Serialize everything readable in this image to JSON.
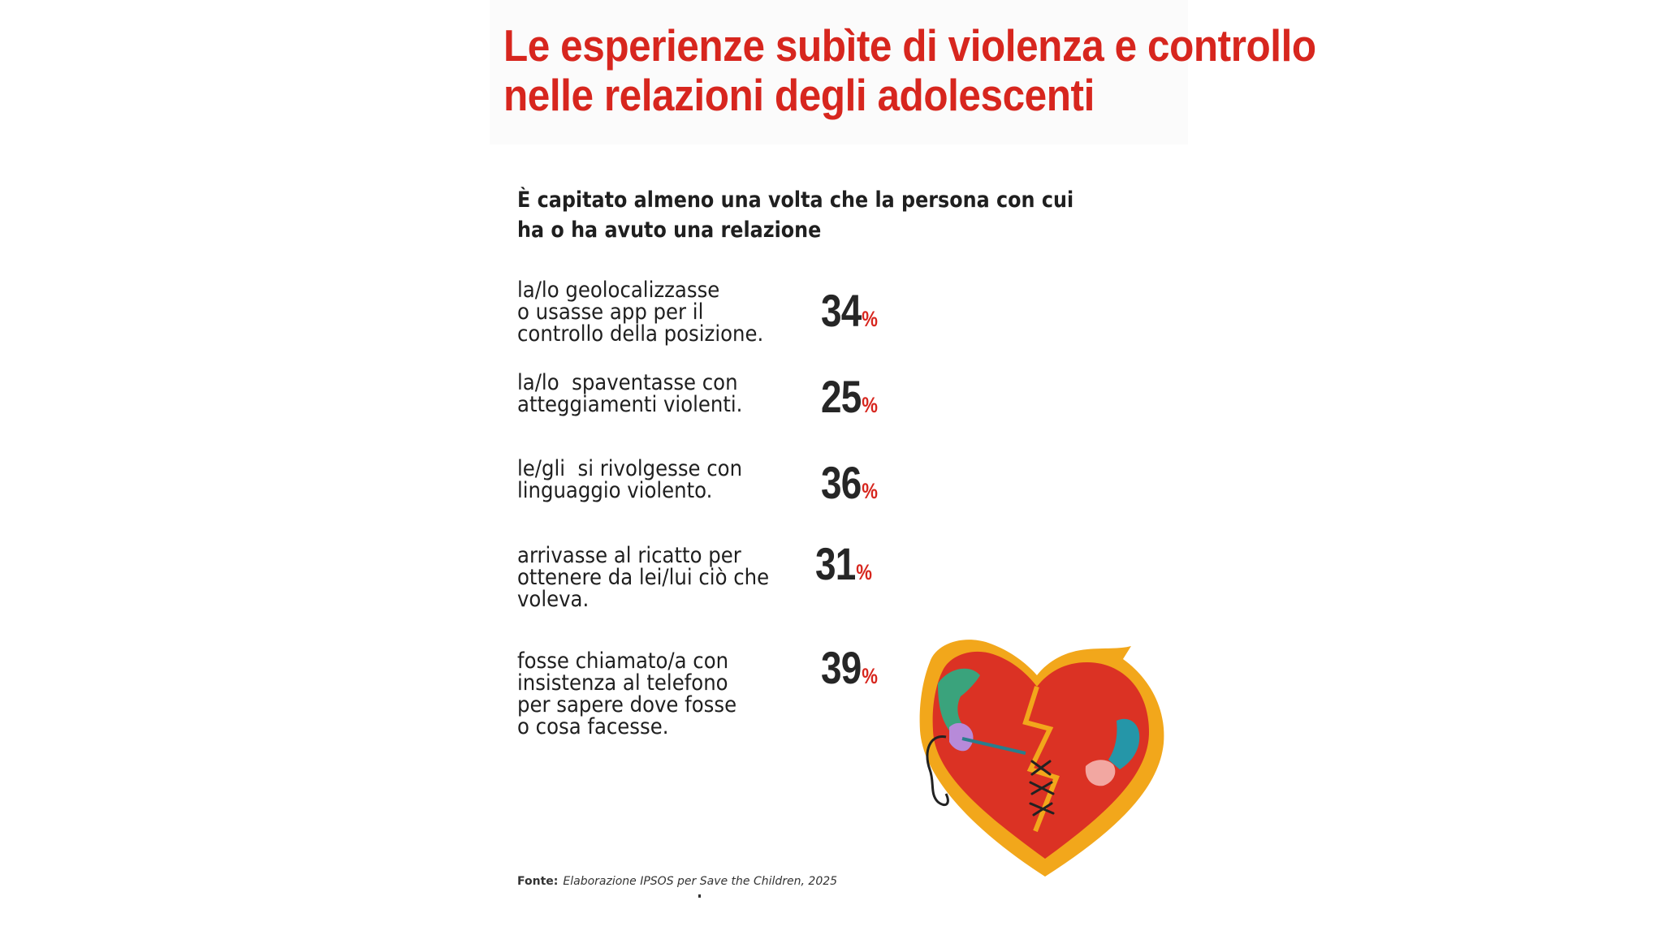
{
  "header": {
    "title_line1": "Le esperienze subìte di violenza e controllo",
    "title_line2": "nelle relazioni degli adolescenti"
  },
  "question": {
    "line1": "È capitato almeno una volta che la persona con cui",
    "line2": "ha o ha avuto una relazione"
  },
  "items": [
    {
      "lines": [
        "la/lo geolocalizzasse",
        "o usasse app per il",
        "controllo della posizione."
      ],
      "value": "34",
      "unit": "%"
    },
    {
      "lines": [
        "la/lo  spaventasse con",
        "atteggiamenti violenti."
      ],
      "value": "25",
      "unit": "%"
    },
    {
      "lines": [
        "le/gli  si rivolgesse con",
        "linguaggio violento."
      ],
      "value": "36",
      "unit": "%"
    },
    {
      "lines": [
        "arrivasse al ricatto per",
        "ottenere da lei/lui ciò che",
        "voleva."
      ],
      "value": "31",
      "unit": "%"
    },
    {
      "lines": [
        "fosse chiamato/a con",
        "insistenza al telefono",
        "per sapere dove fosse",
        "o cosa facesse."
      ],
      "value": "39",
      "unit": "%"
    }
  ],
  "source": {
    "label": "Fonte:",
    "text": "Elaborazione IPSOS per Save the Children, 2025"
  },
  "colors": {
    "accent_red": "#d7261e",
    "heart_red": "#db3224",
    "heart_outline_yellow": "#f2a71b",
    "text_dark": "#1f1f1f"
  },
  "illustration": "broken-heart-being-stitched-icon"
}
